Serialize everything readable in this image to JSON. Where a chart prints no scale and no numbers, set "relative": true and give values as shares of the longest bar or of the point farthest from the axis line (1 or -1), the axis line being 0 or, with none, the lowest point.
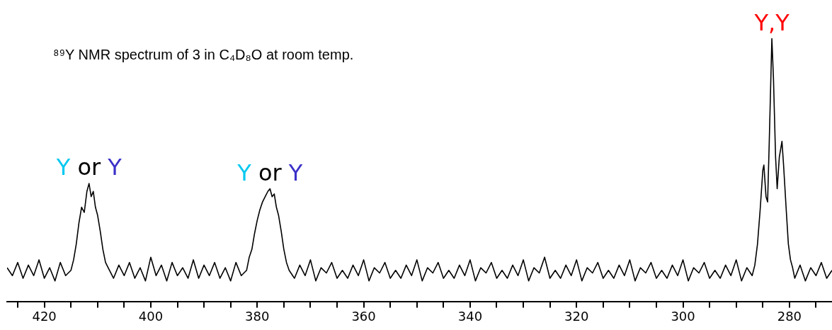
{
  "chart_data": {
    "type": "line",
    "relative": true,
    "title": "⁸⁹Y NMR spectrum of 3 in C₄D₈O at room temp.",
    "x": [
      427,
      426,
      425,
      424,
      423,
      422,
      421,
      420,
      419,
      418,
      417,
      416,
      415,
      414.5,
      414,
      413.5,
      413,
      412.5,
      412,
      411.6,
      411.2,
      410.8,
      410.4,
      410,
      409.5,
      409,
      408.5,
      408,
      407,
      406,
      405,
      404,
      403,
      402,
      401,
      400,
      399,
      398,
      397,
      396,
      395,
      394,
      393,
      392,
      391,
      390,
      389,
      388,
      387,
      386,
      385,
      384,
      383,
      382,
      381.5,
      381,
      380.5,
      380,
      379.5,
      379,
      378.5,
      378,
      377.6,
      377.2,
      376.8,
      376.4,
      376,
      375.5,
      375,
      374.5,
      374,
      373,
      372,
      371,
      370,
      369,
      368,
      367,
      366,
      365,
      364,
      363,
      362,
      361,
      360,
      359,
      358,
      357,
      356,
      355,
      354,
      353,
      352,
      351,
      350,
      349,
      348,
      347,
      346,
      345,
      344,
      343,
      342,
      341,
      340,
      339,
      338,
      337,
      336,
      335,
      334,
      333,
      332,
      331,
      330,
      329,
      328,
      327,
      326,
      325,
      324,
      323,
      322,
      321,
      320,
      319,
      318,
      317,
      316,
      315,
      314,
      313,
      312,
      311,
      310,
      309,
      308,
      307,
      306,
      305,
      304,
      303,
      302,
      301,
      300,
      299,
      298,
      297,
      296,
      295,
      294,
      293,
      292,
      291,
      290,
      289,
      288,
      287,
      286.5,
      286,
      285.5,
      285,
      284.8,
      284.4,
      284.1,
      283.8,
      283.3,
      283,
      282.6,
      282.3,
      281.9,
      281.4,
      281.1,
      280.6,
      280.2,
      279.8,
      279.4,
      279,
      278,
      277,
      276,
      275,
      274,
      273,
      272
    ],
    "values": [
      0.13,
      0.1,
      0.15,
      0.09,
      0.14,
      0.1,
      0.16,
      0.09,
      0.13,
      0.08,
      0.15,
      0.1,
      0.12,
      0.16,
      0.22,
      0.3,
      0.36,
      0.34,
      0.42,
      0.45,
      0.4,
      0.42,
      0.36,
      0.33,
      0.27,
      0.2,
      0.15,
      0.13,
      0.09,
      0.14,
      0.1,
      0.15,
      0.09,
      0.13,
      0.08,
      0.17,
      0.1,
      0.14,
      0.08,
      0.15,
      0.1,
      0.13,
      0.09,
      0.16,
      0.09,
      0.14,
      0.1,
      0.15,
      0.09,
      0.13,
      0.08,
      0.15,
      0.1,
      0.12,
      0.17,
      0.2,
      0.26,
      0.31,
      0.35,
      0.38,
      0.4,
      0.42,
      0.43,
      0.4,
      0.41,
      0.36,
      0.33,
      0.27,
      0.2,
      0.15,
      0.12,
      0.09,
      0.14,
      0.1,
      0.16,
      0.08,
      0.13,
      0.11,
      0.15,
      0.09,
      0.12,
      0.09,
      0.14,
      0.1,
      0.16,
      0.08,
      0.13,
      0.11,
      0.15,
      0.09,
      0.12,
      0.09,
      0.14,
      0.1,
      0.16,
      0.08,
      0.13,
      0.11,
      0.15,
      0.09,
      0.12,
      0.09,
      0.14,
      0.1,
      0.16,
      0.08,
      0.13,
      0.11,
      0.15,
      0.09,
      0.12,
      0.09,
      0.14,
      0.1,
      0.16,
      0.08,
      0.13,
      0.11,
      0.17,
      0.09,
      0.12,
      0.09,
      0.14,
      0.1,
      0.16,
      0.08,
      0.13,
      0.11,
      0.15,
      0.09,
      0.12,
      0.09,
      0.14,
      0.1,
      0.16,
      0.08,
      0.13,
      0.11,
      0.15,
      0.09,
      0.12,
      0.09,
      0.14,
      0.1,
      0.16,
      0.08,
      0.13,
      0.11,
      0.15,
      0.09,
      0.12,
      0.09,
      0.14,
      0.1,
      0.16,
      0.08,
      0.13,
      0.1,
      0.14,
      0.22,
      0.35,
      0.5,
      0.52,
      0.4,
      0.38,
      0.6,
      1.0,
      0.85,
      0.55,
      0.43,
      0.55,
      0.61,
      0.52,
      0.35,
      0.22,
      0.16,
      0.13,
      0.09,
      0.14,
      0.08,
      0.13,
      0.1,
      0.15,
      0.09,
      0.12
    ],
    "color": "#000000",
    "xlim": [
      427,
      272
    ],
    "xticks": [
      {
        "value": 425,
        "label": null
      },
      420,
      {
        "value": 415,
        "label": null
      },
      {
        "value": 410,
        "label": null
      },
      {
        "value": 405,
        "label": null
      },
      400,
      {
        "value": 395,
        "label": null
      },
      {
        "value": 390,
        "label": null
      },
      {
        "value": 385,
        "label": null
      },
      380,
      {
        "value": 375,
        "label": null
      },
      {
        "value": 370,
        "label": null
      },
      {
        "value": 365,
        "label": null
      },
      360,
      {
        "value": 355,
        "label": null
      },
      {
        "value": 350,
        "label": null
      },
      {
        "value": 345,
        "label": null
      },
      340,
      {
        "value": 335,
        "label": null
      },
      {
        "value": 330,
        "label": null
      },
      {
        "value": 325,
        "label": null
      },
      320,
      {
        "value": 315,
        "label": null
      },
      {
        "value": 310,
        "label": null
      },
      {
        "value": 305,
        "label": null
      },
      300,
      {
        "value": 295,
        "label": null
      },
      {
        "value": 290,
        "label": null
      },
      {
        "value": 285,
        "label": null
      },
      280,
      {
        "value": 275,
        "label": null
      }
    ],
    "annotations": [
      {
        "text": "Y or Y",
        "x": 411.6,
        "y": 0.45
      },
      {
        "text": "Y or Y",
        "x": 377.6,
        "y": 0.43
      },
      {
        "text": "Y,Y",
        "x": 283.3,
        "y": 1.0
      }
    ],
    "tick_labels": "x",
    "grid": false,
    "legend": false,
    "marker": "none",
    "line_style": "solid"
  }
}
